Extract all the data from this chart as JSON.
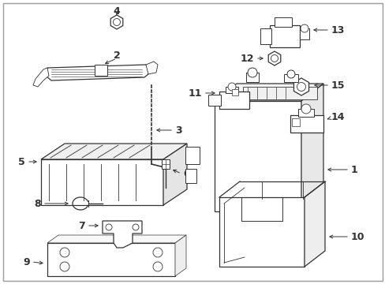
{
  "bg_color": "#ffffff",
  "line_color": "#333333",
  "fig_width": 4.89,
  "fig_height": 3.6,
  "dpi": 100,
  "border_color": "#aaaaaa"
}
